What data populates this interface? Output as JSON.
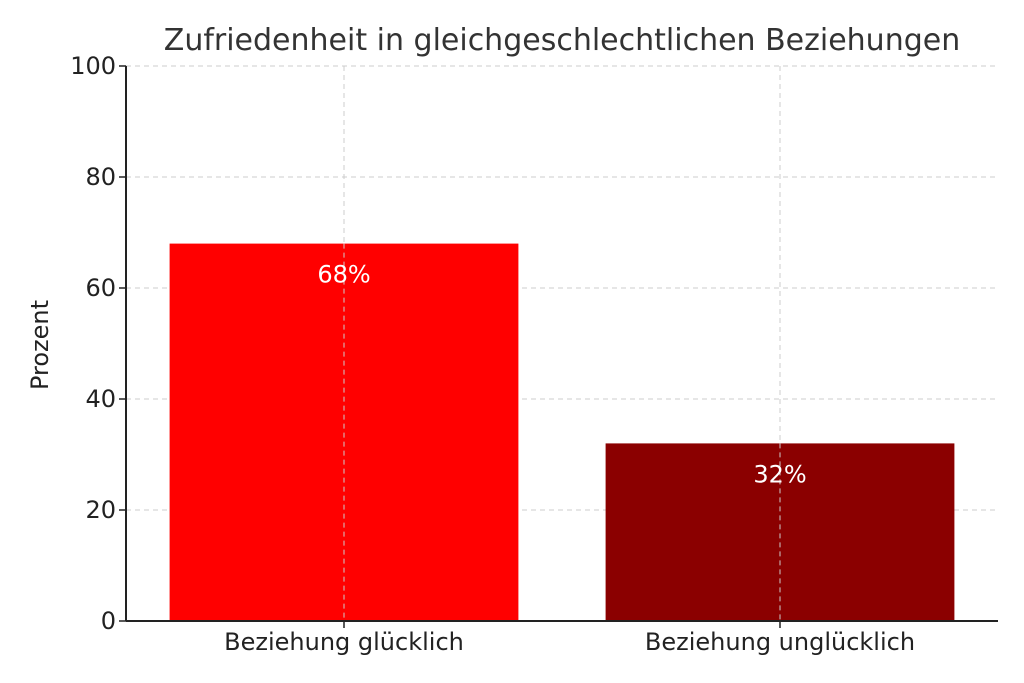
{
  "chart_data": {
    "type": "bar",
    "title": "Zufriedenheit in gleichgeschlechtlichen Beziehungen",
    "xlabel": "",
    "ylabel": "Prozent",
    "categories": [
      "Beziehung glücklich",
      "Beziehung unglücklich"
    ],
    "values": [
      68,
      32
    ],
    "value_labels": [
      "68%",
      "32%"
    ],
    "colors": [
      "#ff0000",
      "#8b0000"
    ],
    "ylim": [
      0,
      100
    ],
    "yticks": [
      "0",
      "20",
      "40",
      "60",
      "80",
      "100"
    ],
    "grid": true,
    "legend": "none"
  }
}
